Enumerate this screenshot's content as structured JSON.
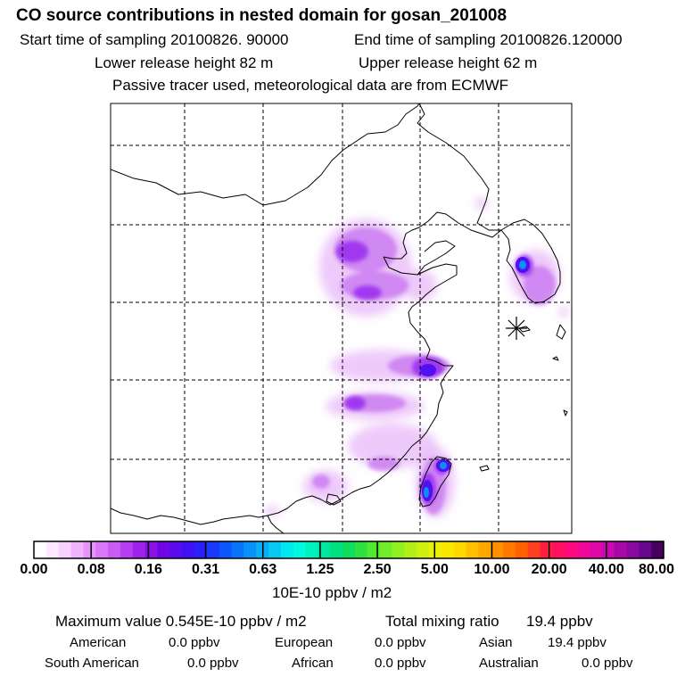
{
  "header": {
    "title": "CO  source contributions in nested domain for gosan_201008",
    "start_time": "Start time of sampling 20100826. 90000",
    "end_time": "End time of sampling 20100826.120000",
    "lower_release": "Lower release height   82 m",
    "upper_release": "Upper release height   62 m",
    "note": "Passive tracer used, meteorological data are from ECMWF"
  },
  "legend": {
    "ticks": [
      "0.00",
      "0.08",
      "0.16",
      "0.31",
      "0.63",
      "1.25",
      "2.50",
      "5.00",
      "10.00",
      "20.00",
      "40.00",
      "80.00"
    ],
    "unit": "10E-10 ppbv / m2",
    "colors": [
      "#ffffff",
      "#fde9ff",
      "#f8d1ff",
      "#f0b4fd",
      "#e694fb",
      "#d878f8",
      "#c85cf4",
      "#b43ef0",
      "#9f22ec",
      "#8b10e8",
      "#7006e6",
      "#5a0aee",
      "#4010f4",
      "#2a20f8",
      "#1838fa",
      "#0c56fc",
      "#0874fa",
      "#0892f8",
      "#08aef6",
      "#08c8f4",
      "#00e8ee",
      "#00f8e0",
      "#00f0c0",
      "#00e8a0",
      "#00e080",
      "#10dc60",
      "#30e040",
      "#50e830",
      "#70ec28",
      "#90f020",
      "#b0f018",
      "#d0f010",
      "#e8f008",
      "#f8e800",
      "#ffd800",
      "#ffc000",
      "#ffa800",
      "#ff9000",
      "#ff7800",
      "#ff6000",
      "#ff4020",
      "#ff2040",
      "#ff1060",
      "#ff0880",
      "#f00898",
      "#e008a8",
      "#c808b0",
      "#a808a8",
      "#8808a0",
      "#680890",
      "#480060"
    ]
  },
  "map": {
    "receptor_marker": "asterisk-star-icon",
    "plume_colors": {
      "light": "#e8b8f8",
      "medium": "#c878f0",
      "strong": "#a038f0",
      "peak": "#5010f0",
      "core": "#0890f8"
    }
  },
  "stats": {
    "max_label": "Maximum value  0.545E-10 ppbv / m2",
    "total_label": "Total mixing ratio",
    "total_value": "19.4 ppbv",
    "sources": {
      "american_label": "American",
      "american_value": "0.0 ppbv",
      "european_label": "European",
      "european_value": "0.0 ppbv",
      "asian_label": "Asian",
      "asian_value": "19.4 ppbv",
      "south_american_label": "South American",
      "south_american_value": "0.0 ppbv",
      "african_label": "African",
      "african_value": "0.0 ppbv",
      "australian_label": "Australian",
      "australian_value": "0.0 ppbv"
    }
  }
}
